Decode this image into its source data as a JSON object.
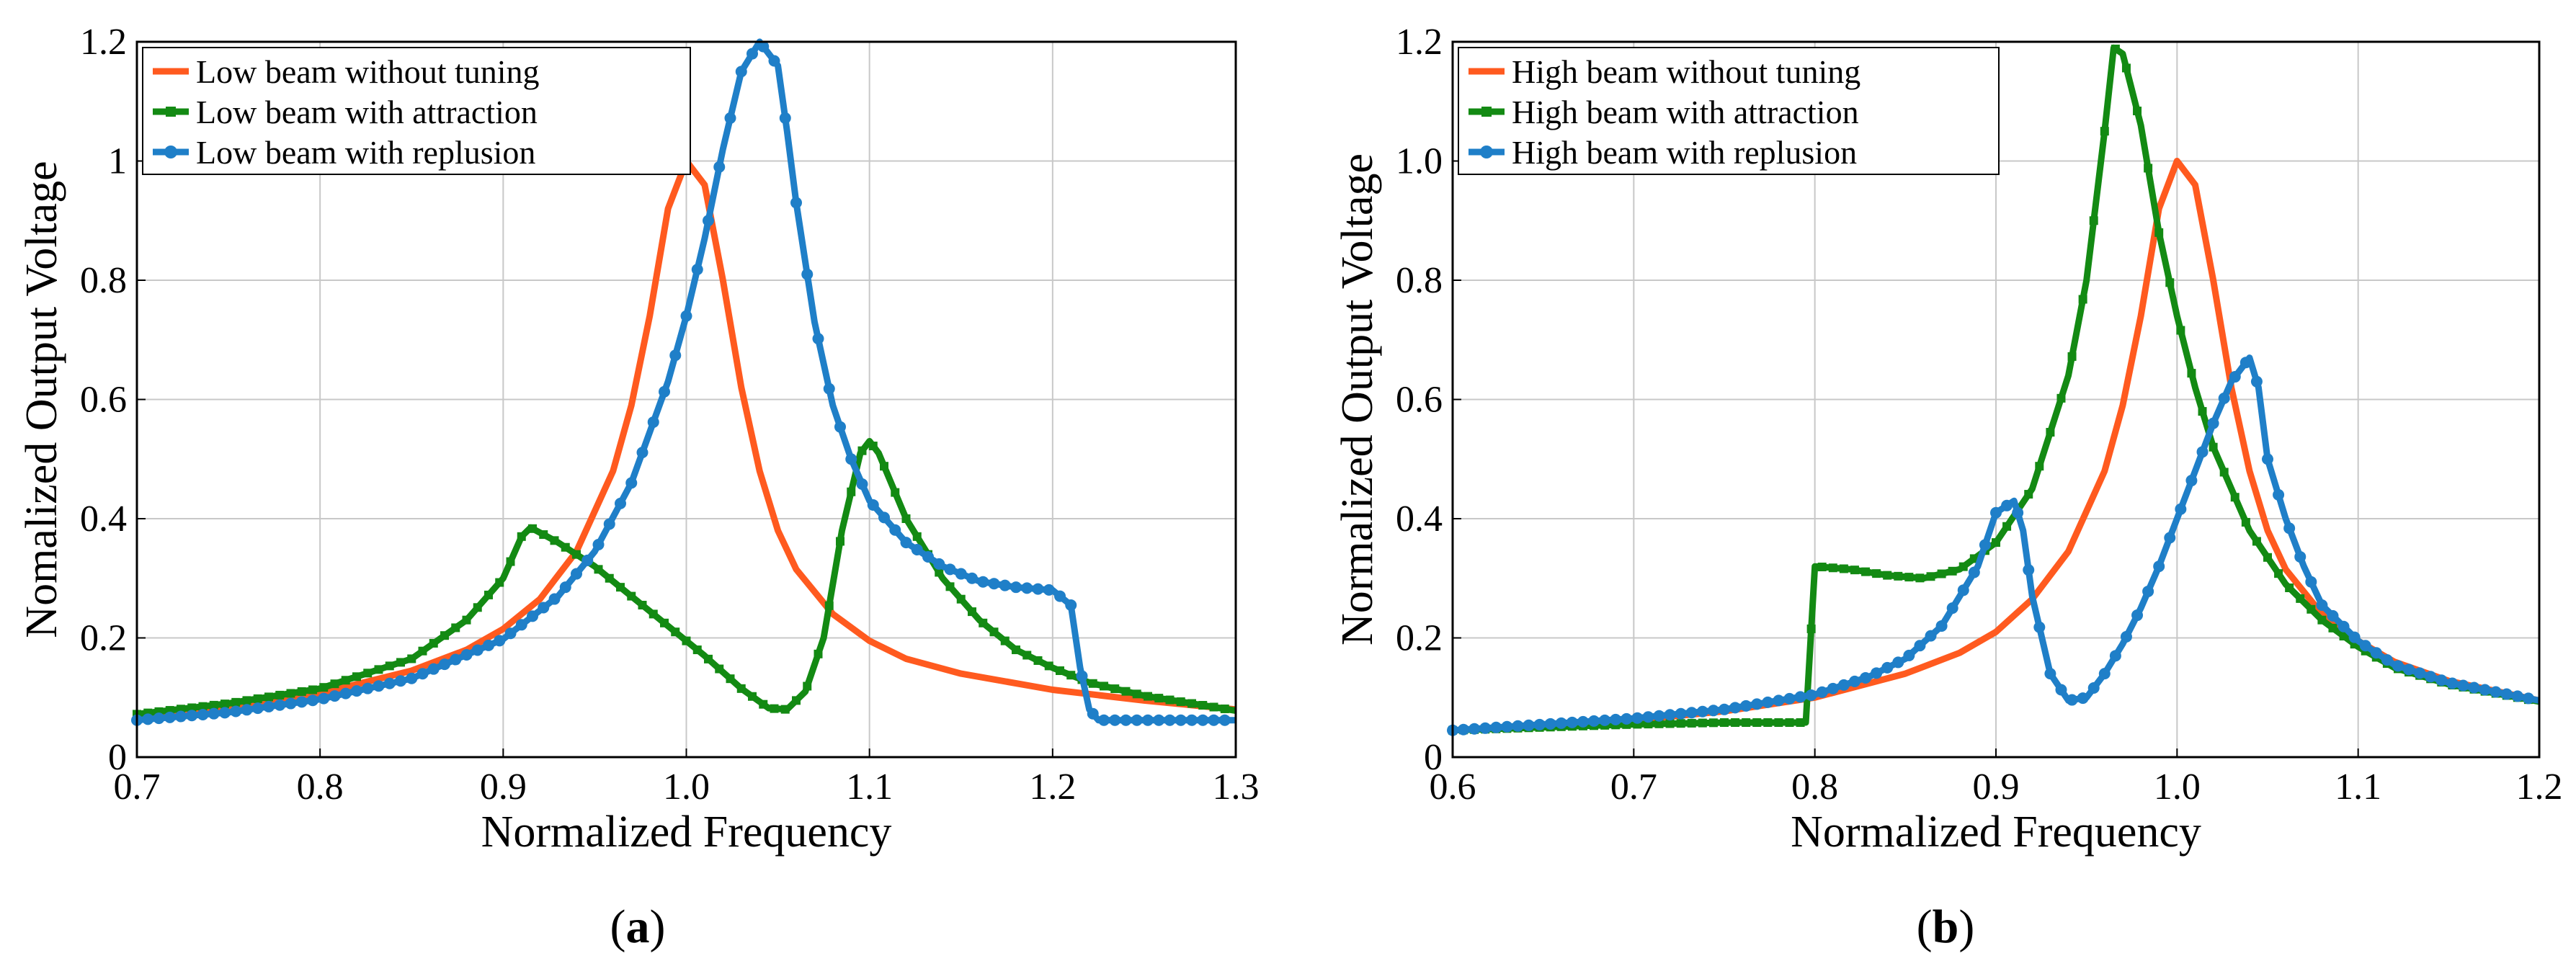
{
  "colors": {
    "orange": "#FF5A1F",
    "green": "#138A13",
    "blue": "#1F7FC8",
    "grid": "#c8c8c8"
  },
  "chart_data": [
    {
      "type": "line",
      "caption": {
        "open": "(",
        "letter": "a",
        "close": ")"
      },
      "xlabel": "Normalized Frequency",
      "ylabel": "Nomalized Output Voltage",
      "xlim": [
        0.7,
        1.3
      ],
      "ylim": [
        0,
        1.2
      ],
      "xticks": [
        "0.7",
        "0.8",
        "0.9",
        "1.0",
        "1.1",
        "1.2",
        "1.3"
      ],
      "yticks": [
        "0",
        "0.2",
        "0.4",
        "0.6",
        "0.8",
        "1",
        "1.2"
      ],
      "grid": true,
      "legend": "top-left",
      "series": [
        {
          "name": "Low beam without tuning",
          "color": "orange",
          "marker": "none",
          "points": [
            [
              0.7,
              0.065
            ],
            [
              0.75,
              0.085
            ],
            [
              0.8,
              0.107
            ],
            [
              0.85,
              0.145
            ],
            [
              0.88,
              0.18
            ],
            [
              0.9,
              0.215
            ],
            [
              0.92,
              0.265
            ],
            [
              0.94,
              0.345
            ],
            [
              0.96,
              0.48
            ],
            [
              0.97,
              0.59
            ],
            [
              0.98,
              0.74
            ],
            [
              0.99,
              0.92
            ],
            [
              1.0,
              1.0
            ],
            [
              1.01,
              0.96
            ],
            [
              1.02,
              0.8
            ],
            [
              1.03,
              0.62
            ],
            [
              1.04,
              0.48
            ],
            [
              1.05,
              0.38
            ],
            [
              1.06,
              0.315
            ],
            [
              1.08,
              0.24
            ],
            [
              1.1,
              0.195
            ],
            [
              1.12,
              0.165
            ],
            [
              1.15,
              0.14
            ],
            [
              1.2,
              0.113
            ],
            [
              1.25,
              0.095
            ],
            [
              1.3,
              0.08
            ]
          ]
        },
        {
          "name": "Low beam with attraction",
          "color": "green",
          "marker": "square",
          "points": [
            [
              0.7,
              0.072
            ],
            [
              0.75,
              0.09
            ],
            [
              0.8,
              0.115
            ],
            [
              0.85,
              0.165
            ],
            [
              0.88,
              0.23
            ],
            [
              0.9,
              0.3
            ],
            [
              0.91,
              0.37
            ],
            [
              0.915,
              0.385
            ],
            [
              0.93,
              0.36
            ],
            [
              0.95,
              0.32
            ],
            [
              0.97,
              0.27
            ],
            [
              0.99,
              0.22
            ],
            [
              1.01,
              0.17
            ],
            [
              1.03,
              0.115
            ],
            [
              1.045,
              0.082
            ],
            [
              1.055,
              0.08
            ],
            [
              1.065,
              0.11
            ],
            [
              1.075,
              0.2
            ],
            [
              1.085,
              0.38
            ],
            [
              1.095,
              0.51
            ],
            [
              1.1,
              0.53
            ],
            [
              1.105,
              0.51
            ],
            [
              1.12,
              0.4
            ],
            [
              1.14,
              0.3
            ],
            [
              1.16,
              0.23
            ],
            [
              1.18,
              0.18
            ],
            [
              1.2,
              0.15
            ],
            [
              1.22,
              0.125
            ],
            [
              1.25,
              0.103
            ],
            [
              1.3,
              0.078
            ]
          ]
        },
        {
          "name": "Low beam with replusion",
          "color": "blue",
          "marker": "circle",
          "points": [
            [
              0.7,
              0.062
            ],
            [
              0.75,
              0.075
            ],
            [
              0.8,
              0.097
            ],
            [
              0.85,
              0.132
            ],
            [
              0.9,
              0.198
            ],
            [
              0.93,
              0.27
            ],
            [
              0.95,
              0.345
            ],
            [
              0.97,
              0.46
            ],
            [
              0.99,
              0.63
            ],
            [
              1.0,
              0.74
            ],
            [
              1.01,
              0.87
            ],
            [
              1.02,
              1.02
            ],
            [
              1.03,
              1.15
            ],
            [
              1.04,
              1.2
            ],
            [
              1.05,
              1.16
            ],
            [
              1.055,
              1.05
            ],
            [
              1.06,
              0.93
            ],
            [
              1.07,
              0.73
            ],
            [
              1.08,
              0.59
            ],
            [
              1.09,
              0.5
            ],
            [
              1.1,
              0.43
            ],
            [
              1.12,
              0.36
            ],
            [
              1.14,
              0.32
            ],
            [
              1.16,
              0.295
            ],
            [
              1.18,
              0.285
            ],
            [
              1.2,
              0.28
            ],
            [
              1.21,
              0.255
            ],
            [
              1.215,
              0.15
            ],
            [
              1.22,
              0.08
            ],
            [
              1.225,
              0.062
            ],
            [
              1.25,
              0.062
            ],
            [
              1.3,
              0.062
            ]
          ]
        }
      ]
    },
    {
      "type": "line",
      "caption": {
        "open": "(",
        "letter": "b",
        "close": ")"
      },
      "xlabel": "Normalized Frequency",
      "ylabel": "Normalized Output Voltage",
      "xlim": [
        0.6,
        1.2
      ],
      "ylim": [
        0,
        1.2
      ],
      "xticks": [
        "0.6",
        "0.7",
        "0.8",
        "0.9",
        "1.0",
        "1.1",
        "1.2"
      ],
      "yticks": [
        "0",
        "0.2",
        "0.4",
        "0.6",
        "0.8",
        "1.0",
        "1.2"
      ],
      "grid": true,
      "legend": "top-left",
      "series": [
        {
          "name": "High beam without tuning",
          "color": "orange",
          "marker": "none",
          "points": [
            [
              0.6,
              0.045
            ],
            [
              0.65,
              0.052
            ],
            [
              0.7,
              0.062
            ],
            [
              0.75,
              0.077
            ],
            [
              0.8,
              0.1
            ],
            [
              0.85,
              0.14
            ],
            [
              0.88,
              0.175
            ],
            [
              0.9,
              0.21
            ],
            [
              0.92,
              0.265
            ],
            [
              0.94,
              0.345
            ],
            [
              0.96,
              0.48
            ],
            [
              0.97,
              0.59
            ],
            [
              0.98,
              0.74
            ],
            [
              0.99,
              0.92
            ],
            [
              1.0,
              1.0
            ],
            [
              1.01,
              0.96
            ],
            [
              1.02,
              0.8
            ],
            [
              1.03,
              0.62
            ],
            [
              1.04,
              0.48
            ],
            [
              1.05,
              0.38
            ],
            [
              1.06,
              0.315
            ],
            [
              1.08,
              0.24
            ],
            [
              1.1,
              0.195
            ],
            [
              1.12,
              0.16
            ],
            [
              1.15,
              0.128
            ],
            [
              1.2,
              0.095
            ]
          ]
        },
        {
          "name": "High beam with attraction",
          "color": "green",
          "marker": "square",
          "points": [
            [
              0.6,
              0.045
            ],
            [
              0.65,
              0.05
            ],
            [
              0.7,
              0.055
            ],
            [
              0.75,
              0.058
            ],
            [
              0.795,
              0.058
            ],
            [
              0.8,
              0.32
            ],
            [
              0.82,
              0.315
            ],
            [
              0.84,
              0.305
            ],
            [
              0.86,
              0.3
            ],
            [
              0.88,
              0.315
            ],
            [
              0.9,
              0.36
            ],
            [
              0.92,
              0.45
            ],
            [
              0.94,
              0.64
            ],
            [
              0.95,
              0.8
            ],
            [
              0.96,
              1.05
            ],
            [
              0.965,
              1.19
            ],
            [
              0.97,
              1.18
            ],
            [
              0.98,
              1.06
            ],
            [
              0.99,
              0.88
            ],
            [
              1.0,
              0.74
            ],
            [
              1.01,
              0.62
            ],
            [
              1.02,
              0.52
            ],
            [
              1.04,
              0.38
            ],
            [
              1.06,
              0.29
            ],
            [
              1.08,
              0.23
            ],
            [
              1.1,
              0.185
            ],
            [
              1.12,
              0.15
            ],
            [
              1.15,
              0.122
            ],
            [
              1.2,
              0.093
            ]
          ]
        },
        {
          "name": "High beam with replusion",
          "color": "blue",
          "marker": "circle",
          "points": [
            [
              0.6,
              0.045
            ],
            [
              0.65,
              0.055
            ],
            [
              0.7,
              0.065
            ],
            [
              0.75,
              0.08
            ],
            [
              0.8,
              0.105
            ],
            [
              0.83,
              0.135
            ],
            [
              0.85,
              0.165
            ],
            [
              0.87,
              0.22
            ],
            [
              0.89,
              0.32
            ],
            [
              0.9,
              0.41
            ],
            [
              0.91,
              0.43
            ],
            [
              0.915,
              0.38
            ],
            [
              0.92,
              0.27
            ],
            [
              0.93,
              0.14
            ],
            [
              0.94,
              0.095
            ],
            [
              0.95,
              0.1
            ],
            [
              0.96,
              0.14
            ],
            [
              0.97,
              0.19
            ],
            [
              0.98,
              0.25
            ],
            [
              0.99,
              0.32
            ],
            [
              1.0,
              0.4
            ],
            [
              1.01,
              0.48
            ],
            [
              1.02,
              0.56
            ],
            [
              1.03,
              0.63
            ],
            [
              1.04,
              0.67
            ],
            [
              1.045,
              0.62
            ],
            [
              1.05,
              0.5
            ],
            [
              1.06,
              0.4
            ],
            [
              1.07,
              0.32
            ],
            [
              1.08,
              0.255
            ],
            [
              1.1,
              0.195
            ],
            [
              1.12,
              0.155
            ],
            [
              1.15,
              0.125
            ],
            [
              1.2,
              0.095
            ]
          ]
        }
      ]
    }
  ]
}
